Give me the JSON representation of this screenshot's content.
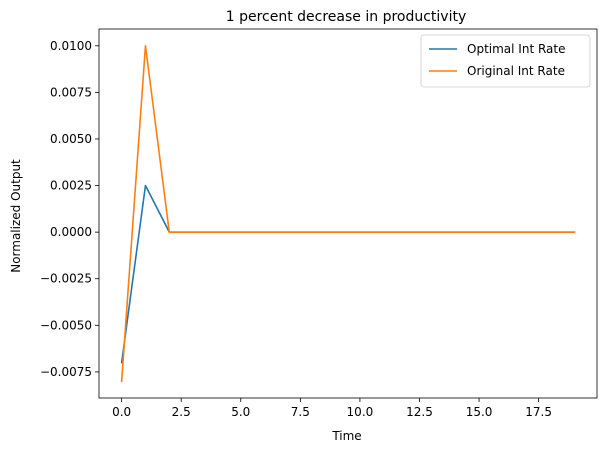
{
  "chart_data": {
    "type": "line",
    "title": "1 percent decrease in productivity",
    "xlabel": "Time",
    "ylabel": "Normalized Output",
    "xlim": [
      -0.95,
      19.95
    ],
    "ylim": [
      -0.0089,
      0.0109
    ],
    "x_ticks": [
      0,
      2.5,
      5,
      7.5,
      10,
      12.5,
      15,
      17.5
    ],
    "x_tick_labels": [
      "0.0",
      "2.5",
      "5.0",
      "7.5",
      "10.0",
      "12.5",
      "15.0",
      "17.5"
    ],
    "y_ticks": [
      -0.0075,
      -0.005,
      -0.0025,
      0,
      0.0025,
      0.005,
      0.0075,
      0.01
    ],
    "y_tick_labels": [
      "−0.0075",
      "−0.0050",
      "−0.0025",
      "0.0000",
      "0.0025",
      "0.0050",
      "0.0075",
      "0.0100"
    ],
    "grid": false,
    "legend_position": "top-right",
    "x": [
      0,
      1,
      2,
      3,
      4,
      5,
      6,
      7,
      8,
      9,
      10,
      11,
      12,
      13,
      14,
      15,
      16,
      17,
      18,
      19
    ],
    "series": [
      {
        "name": "Optimal Int Rate",
        "color": "#1f77b4",
        "values": [
          -0.007,
          0.0025,
          0,
          0,
          0,
          0,
          0,
          0,
          0,
          0,
          0,
          0,
          0,
          0,
          0,
          0,
          0,
          0,
          0,
          0
        ]
      },
      {
        "name": "Original Int Rate",
        "color": "#ff7f0e",
        "values": [
          -0.008,
          0.01,
          0,
          0,
          0,
          0,
          0,
          0,
          0,
          0,
          0,
          0,
          0,
          0,
          0,
          0,
          0,
          0,
          0,
          0
        ]
      }
    ]
  }
}
